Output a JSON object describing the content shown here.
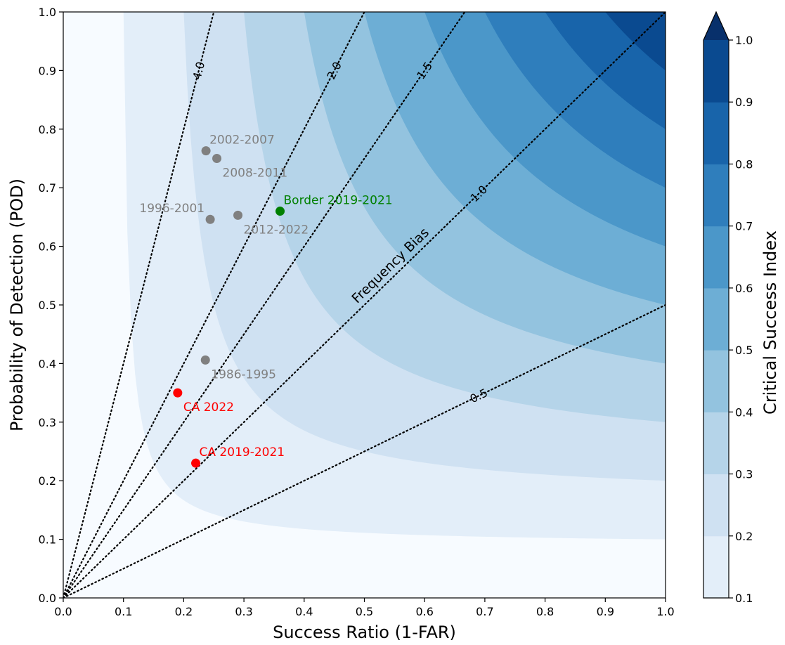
{
  "chart_data": {
    "type": "scatter",
    "title": "",
    "xlabel": "Success Ratio (1-FAR)",
    "ylabel": "Probability of Detection (POD)",
    "xlim": [
      0.0,
      1.0
    ],
    "ylim": [
      0.0,
      1.0
    ],
    "x_ticks": [
      "0.0",
      "0.1",
      "0.2",
      "0.3",
      "0.4",
      "0.5",
      "0.6",
      "0.7",
      "0.8",
      "0.9",
      "1.0"
    ],
    "y_ticks": [
      "0.0",
      "0.1",
      "0.2",
      "0.3",
      "0.4",
      "0.5",
      "0.6",
      "0.7",
      "0.8",
      "0.9",
      "1.0"
    ],
    "grid": false,
    "background": {
      "type": "filled-contour",
      "quantity": "Critical Success Index",
      "levels": [
        0.1,
        0.2,
        0.3,
        0.4,
        0.5,
        0.6,
        0.7,
        0.8,
        0.9,
        1.0
      ],
      "colors": [
        "#f7fbff",
        "#e3eef9",
        "#cfe1f2",
        "#b5d4e9",
        "#93c3df",
        "#6daed5",
        "#4b97c9",
        "#2f7ebc",
        "#1864aa",
        "#0a4a90",
        "#08306b"
      ]
    },
    "colorbar": {
      "label": "Critical Success Index",
      "ticks": [
        "0.1",
        "0.2",
        "0.3",
        "0.4",
        "0.5",
        "0.6",
        "0.7",
        "0.8",
        "0.9",
        "1.0"
      ],
      "extend": "max"
    },
    "bias_lines": {
      "title": "Frequency Bias",
      "values": [
        0.5,
        1.0,
        1.5,
        2.0,
        4.0
      ],
      "labels": [
        "0.5",
        "1.0",
        "1.5",
        "2.0",
        "4.0"
      ]
    },
    "points": [
      {
        "label": "2002-2007",
        "x": 0.237,
        "y": 0.763,
        "color": "#808080",
        "text_color": "#808080",
        "label_pos": "above-right"
      },
      {
        "label": "2008-2011",
        "x": 0.255,
        "y": 0.75,
        "color": "#808080",
        "text_color": "#808080",
        "label_pos": "below-right"
      },
      {
        "label": "1996-2001",
        "x": 0.244,
        "y": 0.646,
        "color": "#808080",
        "text_color": "#808080",
        "label_pos": "above-left"
      },
      {
        "label": "2012-2022",
        "x": 0.29,
        "y": 0.653,
        "color": "#808080",
        "text_color": "#808080",
        "label_pos": "below-right"
      },
      {
        "label": "Border 2019-2021",
        "x": 0.36,
        "y": 0.66,
        "color": "#008000",
        "text_color": "#008000",
        "label_pos": "above-right"
      },
      {
        "label": "1986-1995",
        "x": 0.236,
        "y": 0.406,
        "color": "#808080",
        "text_color": "#808080",
        "label_pos": "below-right"
      },
      {
        "label": "CA 2022",
        "x": 0.19,
        "y": 0.35,
        "color": "#ff0000",
        "text_color": "#ff0000",
        "label_pos": "below-right"
      },
      {
        "label": "CA 2019-2021",
        "x": 0.22,
        "y": 0.23,
        "color": "#ff0000",
        "text_color": "#ff0000",
        "label_pos": "above-right"
      }
    ]
  }
}
